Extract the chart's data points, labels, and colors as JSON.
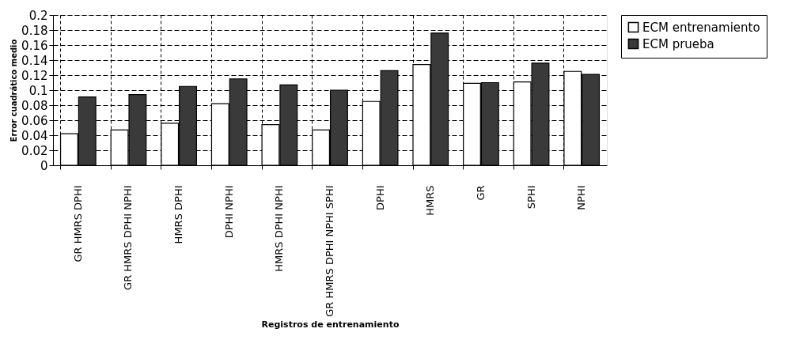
{
  "chart_data": {
    "type": "bar",
    "xlabel": "Registros de entrenamiento",
    "ylabel": "Error cuadrático medio",
    "categories": [
      "GR HMRS DPHI",
      "GR HMRS DPHI NPHI",
      "HMRS DPHI",
      "DPHI NPHI",
      "HMRS DPHI NPHI",
      "GR HMRS DPHI NPHI SPHI",
      "DPHI",
      "HMRS",
      "GR",
      "SPHI",
      "NPHI"
    ],
    "series": [
      {
        "name": "ECM entrenamiento",
        "color": "#ffffff",
        "values": [
          0.042,
          0.047,
          0.056,
          0.082,
          0.054,
          0.047,
          0.085,
          0.134,
          0.109,
          0.111,
          0.125
        ]
      },
      {
        "name": "ECM prueba",
        "color": "#3a3a3a",
        "values": [
          0.091,
          0.094,
          0.105,
          0.115,
          0.107,
          0.1,
          0.126,
          0.176,
          0.11,
          0.136,
          0.121
        ]
      }
    ],
    "ylim": [
      0,
      0.2
    ],
    "yticks": [
      0,
      0.02,
      0.04,
      0.06,
      0.08,
      0.1,
      0.12,
      0.14,
      0.16,
      0.18,
      0.2
    ],
    "grid": true,
    "legend": "right"
  }
}
